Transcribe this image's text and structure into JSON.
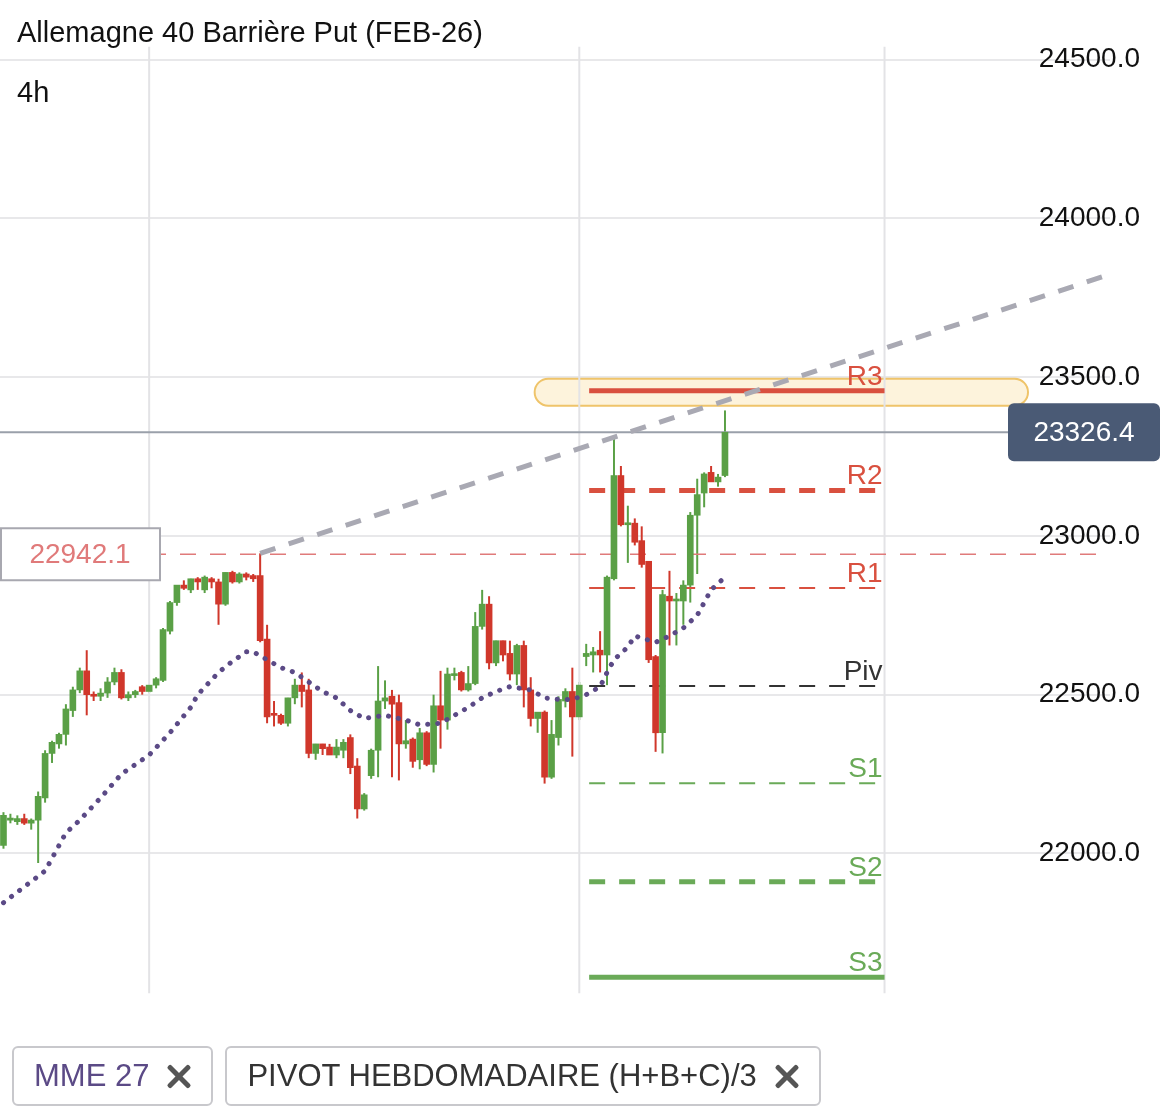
{
  "chart_data": {
    "type": "candlestick",
    "title": "Allemagne 40 Barrière Put (FEB-26)",
    "subtitle": "4h",
    "categories": [
      null,
      null,
      null,
      null,
      null,
      null,
      null,
      null,
      null,
      null,
      null,
      null,
      null,
      null,
      null,
      null,
      null,
      null,
      null,
      null,
      null,
      null,
      null,
      null,
      null,
      null,
      null,
      null,
      null,
      null,
      null,
      null,
      null,
      null,
      null,
      null,
      null,
      null,
      null,
      null,
      null,
      null,
      null,
      null,
      null,
      null,
      null,
      null,
      null,
      null,
      null,
      null,
      null,
      null,
      null,
      null,
      null,
      null,
      null,
      null,
      null,
      null,
      null,
      null,
      null,
      null,
      null,
      null,
      null,
      null,
      null,
      null,
      null,
      null,
      null,
      null,
      null,
      null,
      null,
      null,
      null,
      null,
      null,
      null,
      null,
      null,
      null,
      null,
      null,
      null,
      null,
      null,
      null,
      null,
      null,
      null,
      null,
      null,
      null,
      null,
      null,
      null,
      null,
      null,
      null,
      null,
      null,
      null,
      null,
      null,
      null,
      null,
      null,
      null,
      null,
      null,
      null,
      null,
      null,
      null,
      null,
      null,
      null,
      null,
      null,
      null,
      null,
      null,
      null,
      null,
      null,
      null,
      null,
      null,
      null,
      null,
      null,
      null,
      null,
      null,
      null,
      null,
      null,
      null,
      null,
      null,
      null,
      null,
      null,
      null,
      null,
      null,
      null,
      null,
      null,
      null,
      null,
      null,
      null,
      null
    ],
    "ohlc": [
      [
        22025,
        22130,
        22015,
        22120
      ],
      [
        22105,
        22125,
        22095,
        22110
      ],
      [
        22100,
        22120,
        22090,
        22110
      ],
      [
        22110,
        22125,
        22090,
        22095
      ],
      [
        22095,
        22110,
        22075,
        22105
      ],
      [
        22105,
        22195,
        21970,
        22180
      ],
      [
        22175,
        22325,
        22160,
        22315
      ],
      [
        22315,
        22355,
        22285,
        22350
      ],
      [
        22345,
        22380,
        22330,
        22375
      ],
      [
        22375,
        22470,
        22340,
        22455
      ],
      [
        22450,
        22525,
        22430,
        22515
      ],
      [
        22515,
        22585,
        22505,
        22575
      ],
      [
        22575,
        22640,
        22435,
        22500
      ],
      [
        22500,
        22510,
        22480,
        22495
      ],
      [
        22495,
        22520,
        22480,
        22505
      ],
      [
        22505,
        22555,
        22490,
        22540
      ],
      [
        22540,
        22585,
        22530,
        22570
      ],
      [
        22570,
        22580,
        22485,
        22490
      ],
      [
        22490,
        22510,
        22480,
        22500
      ],
      [
        22500,
        22515,
        22490,
        22510
      ],
      [
        22525,
        22530,
        22500,
        22510
      ],
      [
        22510,
        22530,
        22505,
        22530
      ],
      [
        22530,
        22555,
        22520,
        22550
      ],
      [
        22545,
        22710,
        22540,
        22705
      ],
      [
        22700,
        22795,
        22690,
        22790
      ],
      [
        22790,
        22845,
        22780,
        22845
      ],
      [
        22845,
        22860,
        22830,
        22835
      ],
      [
        22830,
        22865,
        22820,
        22865
      ],
      [
        22865,
        22870,
        22830,
        22855
      ],
      [
        22830,
        22875,
        22820,
        22870
      ],
      [
        22865,
        22870,
        22835,
        22855
      ],
      [
        22855,
        22865,
        22720,
        22785
      ],
      [
        22785,
        22885,
        22780,
        22885
      ],
      [
        22885,
        22890,
        22850,
        22855
      ],
      [
        22855,
        22885,
        22850,
        22880
      ],
      [
        22880,
        22885,
        22860,
        22870
      ],
      [
        22875,
        22880,
        22855,
        22865
      ],
      [
        22875,
        22945,
        22665,
        22670
      ],
      [
        22675,
        22720,
        22410,
        22430
      ],
      [
        22440,
        22480,
        22400,
        22435
      ],
      [
        22435,
        22440,
        22405,
        22410
      ],
      [
        22410,
        22490,
        22400,
        22490
      ],
      [
        22490,
        22550,
        22470,
        22530
      ],
      [
        22530,
        22570,
        22460,
        22510
      ],
      [
        22515,
        22550,
        22300,
        22315
      ],
      [
        22315,
        22345,
        22295,
        22345
      ],
      [
        22345,
        22345,
        22310,
        22330
      ],
      [
        22335,
        22345,
        22310,
        22310
      ],
      [
        22310,
        22360,
        22300,
        22335
      ],
      [
        22325,
        22360,
        22300,
        22350
      ],
      [
        22365,
        22375,
        22250,
        22270
      ],
      [
        22275,
        22300,
        22110,
        22140
      ],
      [
        22140,
        22190,
        22135,
        22185
      ],
      [
        22245,
        22330,
        22235,
        22325
      ],
      [
        22325,
        22590,
        22240,
        22480
      ],
      [
        22480,
        22545,
        22455,
        22490
      ],
      [
        22495,
        22515,
        22240,
        22470
      ],
      [
        22475,
        22500,
        22230,
        22345
      ],
      [
        22345,
        22420,
        22330,
        22355
      ],
      [
        22360,
        22365,
        22270,
        22290
      ],
      [
        22295,
        22395,
        22265,
        22380
      ],
      [
        22380,
        22385,
        22275,
        22280
      ],
      [
        22280,
        22500,
        22255,
        22465
      ],
      [
        22465,
        22575,
        22330,
        22420
      ],
      [
        22420,
        22585,
        22390,
        22565
      ],
      [
        22560,
        22585,
        22545,
        22565
      ],
      [
        22570,
        22575,
        22510,
        22515
      ],
      [
        22515,
        22590,
        22510,
        22535
      ],
      [
        22535,
        22760,
        22530,
        22715
      ],
      [
        22715,
        22830,
        22705,
        22785
      ],
      [
        22785,
        22810,
        22580,
        22600
      ],
      [
        22600,
        22670,
        22590,
        22670
      ],
      [
        22670,
        22670,
        22605,
        22625
      ],
      [
        22630,
        22670,
        22545,
        22565
      ],
      [
        22565,
        22660,
        22530,
        22655
      ],
      [
        22655,
        22670,
        22460,
        22515
      ],
      [
        22515,
        22555,
        22400,
        22425
      ],
      [
        22425,
        22445,
        22380,
        22445
      ],
      [
        22445,
        22450,
        22220,
        22240
      ],
      [
        22240,
        22420,
        22235,
        22375
      ],
      [
        22365,
        22495,
        22340,
        22485
      ],
      [
        22480,
        22520,
        22460,
        22510
      ],
      [
        22510,
        22585,
        22305,
        22430
      ],
      [
        22430,
        22540,
        22420,
        22530
      ],
      [
        22620,
        22660,
        22590,
        22630
      ],
      [
        22625,
        22650,
        22570,
        22635
      ],
      [
        22640,
        22700,
        22570,
        22625
      ],
      [
        22625,
        22875,
        22530,
        22870
      ],
      [
        22865,
        23310,
        22860,
        23190
      ],
      [
        23190,
        23220,
        23030,
        23035
      ],
      [
        23035,
        23095,
        22915,
        23040
      ],
      [
        23040,
        23055,
        22970,
        22980
      ],
      [
        22985,
        23030,
        22900,
        22910
      ],
      [
        22920,
        22920,
        22600,
        22610
      ],
      [
        22620,
        22625,
        22320,
        22380
      ],
      [
        22380,
        22830,
        22315,
        22815
      ],
      [
        22810,
        22890,
        22655,
        22795
      ],
      [
        22795,
        22820,
        22655,
        22800
      ],
      [
        22795,
        22860,
        22720,
        22845
      ],
      [
        22845,
        23075,
        22790,
        23065
      ],
      [
        23065,
        23180,
        22880,
        23130
      ],
      [
        23135,
        23200,
        23090,
        23195
      ],
      [
        23200,
        23220,
        23170,
        23170
      ],
      [
        23170,
        23195,
        23155,
        23185
      ],
      [
        23190,
        23395,
        23185,
        23326.4
      ],
      null,
      null,
      null,
      null,
      null,
      null,
      null,
      null,
      null,
      null,
      null,
      null,
      null,
      null,
      null,
      null,
      null,
      null,
      null,
      null,
      null,
      null,
      null,
      null,
      null,
      null,
      null,
      null,
      null,
      null,
      null,
      null,
      null,
      null,
      null,
      null,
      null,
      null,
      null,
      null,
      null,
      null,
      null,
      null,
      null,
      null,
      null,
      null,
      null,
      null,
      null,
      null,
      null,
      null,
      null
    ],
    "series": [
      {
        "type": "line",
        "name": "MME 27",
        "color": "#5b4a86",
        "line_style": "dotted",
        "values": [
          21845,
          null,
          null,
          null,
          null,
          null,
          21945,
          null,
          null,
          22065,
          null,
          22105,
          null,
          null,
          22175,
          null,
          null,
          22250,
          null,
          null,
          null,
          22310,
          null,
          null,
          22380,
          null,
          null,
          22460,
          22500,
          null,
          null,
          22570,
          null,
          22605,
          null,
          22635,
          22635,
          null,
          22610,
          null,
          22585,
          null,
          22570,
          null,
          22540,
          null,
          22510,
          null,
          22490,
          null,
          22450,
          null,
          22425,
          null,
          null,
          22435,
          null,
          null,
          22420,
          null,
          22405,
          null,
          null,
          22410,
          null,
          22435,
          null,
          22460,
          null,
          22490,
          null,
          22510,
          null,
          22525,
          null,
          null,
          22515,
          null,
          22490,
          null,
          22485,
          null,
          22485,
          null,
          22500,
          null,
          22525,
          22570,
          22610,
          null,
          22650,
          22685,
          null,
          null,
          22665,
          null,
          22685,
          null,
          22710,
          null,
          22750,
          22790,
          22830,
          null,
          22870,
          null,
          null,
          null,
          null,
          null,
          null,
          null,
          null,
          null,
          null,
          null,
          null,
          null,
          null,
          null,
          null,
          null,
          null,
          null,
          null,
          null,
          null,
          null,
          null,
          null,
          null,
          null,
          null,
          null,
          null,
          null,
          null,
          null,
          null,
          null,
          null,
          null,
          null,
          null,
          null,
          null,
          null,
          null,
          null,
          null,
          null,
          null,
          null,
          null,
          null,
          null,
          null,
          null,
          null,
          null
        ]
      },
      {
        "type": "line",
        "color": "#a9a9b3",
        "line_style": "dashed",
        "values": [
          null,
          null,
          null,
          null,
          null,
          null,
          null,
          null,
          null,
          null,
          null,
          null,
          null,
          null,
          null,
          null,
          null,
          null,
          null,
          null,
          null,
          null,
          null,
          null,
          null,
          null,
          null,
          null,
          null,
          null,
          null,
          null,
          null,
          null,
          null,
          null,
          null,
          22945,
          null,
          null,
          null,
          null,
          null,
          null,
          null,
          null,
          null,
          null,
          null,
          null,
          null,
          null,
          null,
          null,
          null,
          null,
          null,
          null,
          null,
          null,
          null,
          null,
          null,
          null,
          null,
          null,
          null,
          null,
          null,
          null,
          null,
          null,
          null,
          null,
          null,
          null,
          null,
          null,
          null,
          null,
          null,
          null,
          null,
          null,
          null,
          null,
          null,
          null,
          null,
          null,
          null,
          null,
          null,
          null,
          null,
          null,
          null,
          null,
          null,
          null,
          null,
          null,
          null,
          null,
          null,
          null,
          null,
          null,
          null,
          null,
          null,
          null,
          null,
          null,
          null,
          null,
          null,
          null,
          null,
          null,
          null,
          null,
          null,
          null,
          null,
          null,
          null,
          null,
          null,
          null,
          null,
          null,
          null,
          null,
          null,
          null,
          null,
          null,
          null,
          null,
          null,
          null,
          null,
          null,
          null,
          null,
          null,
          null,
          null,
          null,
          null,
          null,
          null,
          null,
          null,
          null,
          null,
          null,
          null,
          23820
        ]
      }
    ],
    "ref_lines": [
      {
        "axis": "y",
        "value": 22942.1,
        "label": "22942.1",
        "color": "#e07a7a",
        "line_style": "dashed"
      },
      {
        "axis": "y",
        "value": 23326.4,
        "label": "23326.4",
        "color": "#9aa0aa",
        "line_style": "solid"
      },
      {
        "axis": "y",
        "value": 23457,
        "label": "R3",
        "color": "#d9503f",
        "line_style": "solid"
      },
      {
        "axis": "y",
        "value": 23143,
        "label": "R2",
        "color": "#d9503f",
        "line_style": "dashed"
      },
      {
        "axis": "y",
        "value": 22836,
        "label": "R1",
        "color": "#d9503f",
        "line_style": "dashed"
      },
      {
        "axis": "y",
        "value": 22527,
        "label": "Piv",
        "color": "#333333",
        "line_style": "dashed"
      },
      {
        "axis": "y",
        "value": 22221,
        "label": "S1",
        "color": "#6aaa58",
        "line_style": "dashed"
      },
      {
        "axis": "y",
        "value": 21911,
        "label": "S2",
        "color": "#6aaa58",
        "line_style": "dashed"
      },
      {
        "axis": "y",
        "value": 21610,
        "label": "S3",
        "color": "#6aaa58",
        "line_style": "solid"
      }
    ],
    "bands": [
      {
        "axis": "y",
        "from": 23410,
        "to": 23495,
        "color": "#fdf3dc"
      }
    ],
    "annotations": [
      "PIVOT HEBDOMADAIRE (H+B+C)/3"
    ],
    "ylim": [
      21560,
      24540
    ],
    "yticks": [
      {
        "value": 22000,
        "label": "22000.0"
      },
      {
        "value": 22500,
        "label": "22500.0"
      },
      {
        "value": 23000,
        "label": "23000.0"
      },
      {
        "value": 23500,
        "label": "23500.0"
      },
      {
        "value": 24000,
        "label": "24000.0"
      },
      {
        "value": 24500,
        "label": "24500.0"
      }
    ],
    "tick_labels": "y",
    "grid": "y",
    "legend": "bottom left",
    "marker": "none"
  }
}
